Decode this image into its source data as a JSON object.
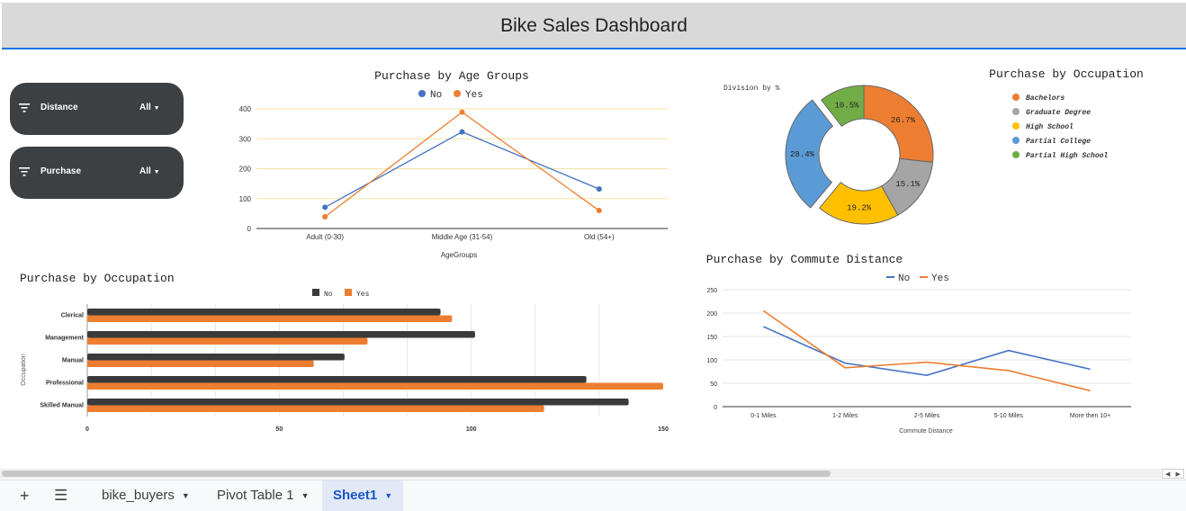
{
  "banner": {
    "title": "Bike Sales Dashboard"
  },
  "slicers": [
    {
      "label": "Distance",
      "value": "All"
    },
    {
      "label": "Purchase",
      "value": "All"
    }
  ],
  "tabs": {
    "add_icon": "+",
    "menu_icon": "☰",
    "items": [
      {
        "label": "bike_buyers",
        "active": false
      },
      {
        "label": "Pivot Table 1",
        "active": false
      },
      {
        "label": "Sheet1",
        "active": true
      }
    ]
  },
  "colors": {
    "no": "#4472c4",
    "yes": "#ed7d31",
    "bar_no": "#3a3a3a",
    "bar_yes": "#ed7d31"
  },
  "chart_data": [
    {
      "id": "age",
      "type": "line",
      "title": "Purchase by Age Groups",
      "xlabel": "AgeGroups",
      "ylabel": "",
      "categories": [
        "Adult (0-30)",
        "Middle Age (31-54)",
        "Old (54+)"
      ],
      "series": [
        {
          "name": "No",
          "values": [
            71,
            323,
            132
          ]
        },
        {
          "name": "Yes",
          "values": [
            39,
            389,
            60
          ]
        }
      ],
      "ylim": [
        0,
        400
      ],
      "yticks": [
        "0",
        "100",
        "200",
        "300",
        "400"
      ],
      "legend": "top"
    },
    {
      "id": "donut",
      "type": "pie",
      "title": "Purchase by Occupation",
      "subtitle": "Division by %",
      "slices": [
        {
          "name": "Bachelors",
          "value": 26.7,
          "label": "26.7%",
          "color": "#ed7d31"
        },
        {
          "name": "Graduate Degree",
          "value": 15.1,
          "label": "15.1%",
          "color": "#a5a5a5"
        },
        {
          "name": "High School",
          "value": 19.2,
          "label": "19.2%",
          "color": "#ffc000"
        },
        {
          "name": "Partial College",
          "value": 28.4,
          "label": "28.4%",
          "color": "#5b9bd5"
        },
        {
          "name": "Partial High School",
          "value": 10.5,
          "label": "10.5%",
          "color": "#70ad47"
        }
      ],
      "legend": "right"
    },
    {
      "id": "occupation",
      "type": "bar",
      "title": "Purchase by Occupation",
      "ylabel": "Occupation",
      "categories": [
        "Clerical",
        "Management",
        "Manual",
        "Professional",
        "Skilled Manual"
      ],
      "series": [
        {
          "name": "No",
          "values": [
            92,
            101,
            67,
            130,
            141
          ]
        },
        {
          "name": "Yes",
          "values": [
            95,
            73,
            59,
            150,
            119
          ]
        }
      ],
      "xlim": [
        0,
        150
      ],
      "xticks": [
        "0",
        "50",
        "100",
        "150"
      ],
      "legend": "top"
    },
    {
      "id": "commute",
      "type": "line",
      "title": "Purchase by Commute Distance",
      "xlabel": "Commute Distance",
      "categories": [
        "0-1 Miles",
        "1-2 Miles",
        "2-5 Miles",
        "5-10 Miles",
        "More then 10+"
      ],
      "series": [
        {
          "name": "No",
          "values": [
            171,
            93,
            67,
            120,
            80
          ]
        },
        {
          "name": "Yes",
          "values": [
            205,
            83,
            95,
            77,
            34
          ]
        }
      ],
      "ylim": [
        0,
        250
      ],
      "yticks": [
        "0",
        "50",
        "100",
        "150",
        "200",
        "250"
      ],
      "legend": "top"
    }
  ]
}
